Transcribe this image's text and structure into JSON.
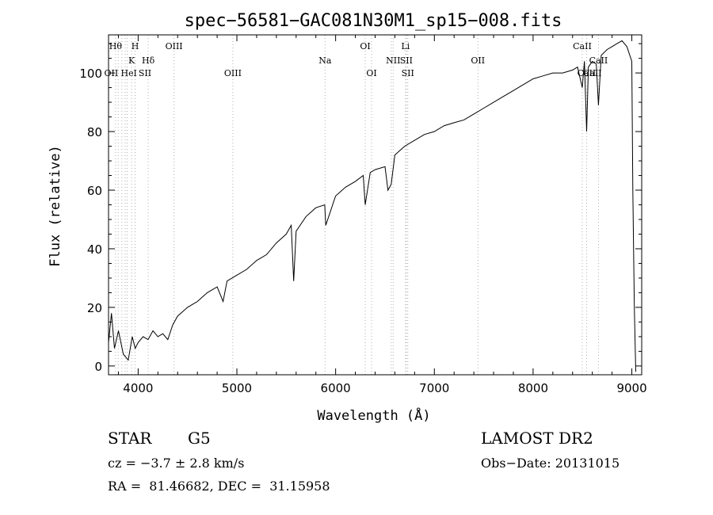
{
  "chart_data": {
    "type": "line",
    "title": "spec−56581−GAC081N30M1_sp15−008.fits",
    "xlabel": "Wavelength (Å)",
    "ylabel": "Flux (relative)",
    "xlim": [
      3700,
      9100
    ],
    "ylim": [
      -3,
      113
    ],
    "xticks": [
      4000,
      5000,
      6000,
      7000,
      8000,
      9000
    ],
    "yticks": [
      0,
      20,
      40,
      60,
      80,
      100
    ],
    "series": [
      {
        "name": "spectrum",
        "color": "#000000",
        "x": [
          3700,
          3730,
          3760,
          3800,
          3850,
          3900,
          3940,
          3970,
          4000,
          4050,
          4100,
          4150,
          4200,
          4250,
          4300,
          4350,
          4400,
          4500,
          4600,
          4700,
          4800,
          4860,
          4900,
          5000,
          5100,
          5200,
          5300,
          5400,
          5500,
          5550,
          5575,
          5600,
          5700,
          5800,
          5890,
          5900,
          6000,
          6100,
          6200,
          6280,
          6300,
          6350,
          6400,
          6500,
          6530,
          6563,
          6600,
          6700,
          6800,
          6900,
          7000,
          7100,
          7200,
          7300,
          7400,
          7500,
          7600,
          7700,
          7800,
          7900,
          8000,
          8100,
          8200,
          8300,
          8400,
          8450,
          8498,
          8520,
          8542,
          8560,
          8600,
          8640,
          8662,
          8690,
          8750,
          8800,
          8850,
          8900,
          8950,
          9000,
          9010,
          9025,
          9040
        ],
        "y": [
          8,
          18,
          6,
          12,
          4,
          2,
          10,
          6,
          8,
          10,
          9,
          12,
          10,
          11,
          9,
          14,
          17,
          20,
          22,
          25,
          27,
          22,
          29,
          31,
          33,
          36,
          38,
          42,
          45,
          48,
          29,
          46,
          51,
          54,
          55,
          48,
          58,
          61,
          63,
          65,
          55,
          66,
          67,
          68,
          60,
          62,
          72,
          75,
          77,
          79,
          80,
          82,
          83,
          84,
          86,
          88,
          90,
          92,
          94,
          96,
          98,
          99,
          100,
          100,
          101,
          102,
          95,
          104,
          80,
          102,
          104,
          103,
          89,
          106,
          108,
          109,
          110,
          111,
          109,
          104,
          60,
          20,
          -2
        ]
      }
    ],
    "lines": [
      {
        "x": 3771,
        "color": "#bbbbbb",
        "label": "Hθ",
        "row": 0
      },
      {
        "x": 3798,
        "color": "#bbbbbb",
        "label": "",
        "row": 0
      },
      {
        "x": 3835,
        "color": "#bbbbbb",
        "label": "",
        "row": 0
      },
      {
        "x": 3869,
        "color": "#bbbbbb",
        "label": "",
        "row": 0
      },
      {
        "x": 3889,
        "color": "#bbbbbb",
        "label": "",
        "row": 0
      },
      {
        "x": 3934,
        "color": "#bbbbbb",
        "label": "K",
        "row": 1
      },
      {
        "x": 3969,
        "color": "#bbbbbb",
        "label": "H",
        "row": 0
      },
      {
        "x": 4102,
        "color": "#bbbbbb",
        "label": "Hδ",
        "row": 1
      },
      {
        "x": 4363,
        "color": "#bbbbbb",
        "label": "OIII",
        "row": 0
      },
      {
        "x": 4959,
        "color": "#bbbbbb",
        "label": "OIII",
        "row": 2
      },
      {
        "x": 5893,
        "color": "#bbbbbb",
        "label": "Na",
        "row": 1
      },
      {
        "x": 6300,
        "color": "#bbbbbb",
        "label": "OI",
        "row": 0
      },
      {
        "x": 6364,
        "color": "#bbbbbb",
        "label": "OI",
        "row": 2
      },
      {
        "x": 6563,
        "color": "#bbbbbb",
        "label": "",
        "row": 0
      },
      {
        "x": 6583,
        "color": "#bbbbbb",
        "label": "NII",
        "row": 1
      },
      {
        "x": 6708,
        "color": "#bbbbbb",
        "label": "Li",
        "row": 0
      },
      {
        "x": 6716,
        "color": "#bbbbbb",
        "label": "SII",
        "row": 1
      },
      {
        "x": 6731,
        "color": "#bbbbbb",
        "label": "SII",
        "row": 2
      },
      {
        "x": 7441,
        "color": "#bbbbbb",
        "label": "OII",
        "row": 1
      },
      {
        "x": 8498,
        "color": "#bbbbbb",
        "label": "CaII",
        "row": 0
      },
      {
        "x": 8542,
        "color": "#bbbbbb",
        "label": "CaII",
        "row": 2
      },
      {
        "x": 8662,
        "color": "#bbbbbb",
        "label": "CaII",
        "row": 1
      }
    ],
    "overlapping_labels": [
      {
        "text": "OII",
        "x_anchor": 3727,
        "row": 2
      },
      {
        "text": "He",
        "x_anchor": 3889,
        "row": 2
      },
      {
        "text": "I",
        "x_anchor": 3970,
        "row": 2
      },
      {
        "text": "SII",
        "x_anchor": 4069,
        "row": 2
      },
      {
        "text": "CaII",
        "x_anchor": 8600,
        "row": 2
      }
    ],
    "grid": false,
    "legend": "none"
  },
  "info": {
    "object_class": "STAR",
    "subclass": "G5",
    "survey": "LAMOST DR2",
    "cz": "cz = −3.7 ± 2.8 km/s",
    "obs_date": "Obs−Date: 20131015",
    "coords": "RA =  81.46682, DEC =  31.15958"
  }
}
